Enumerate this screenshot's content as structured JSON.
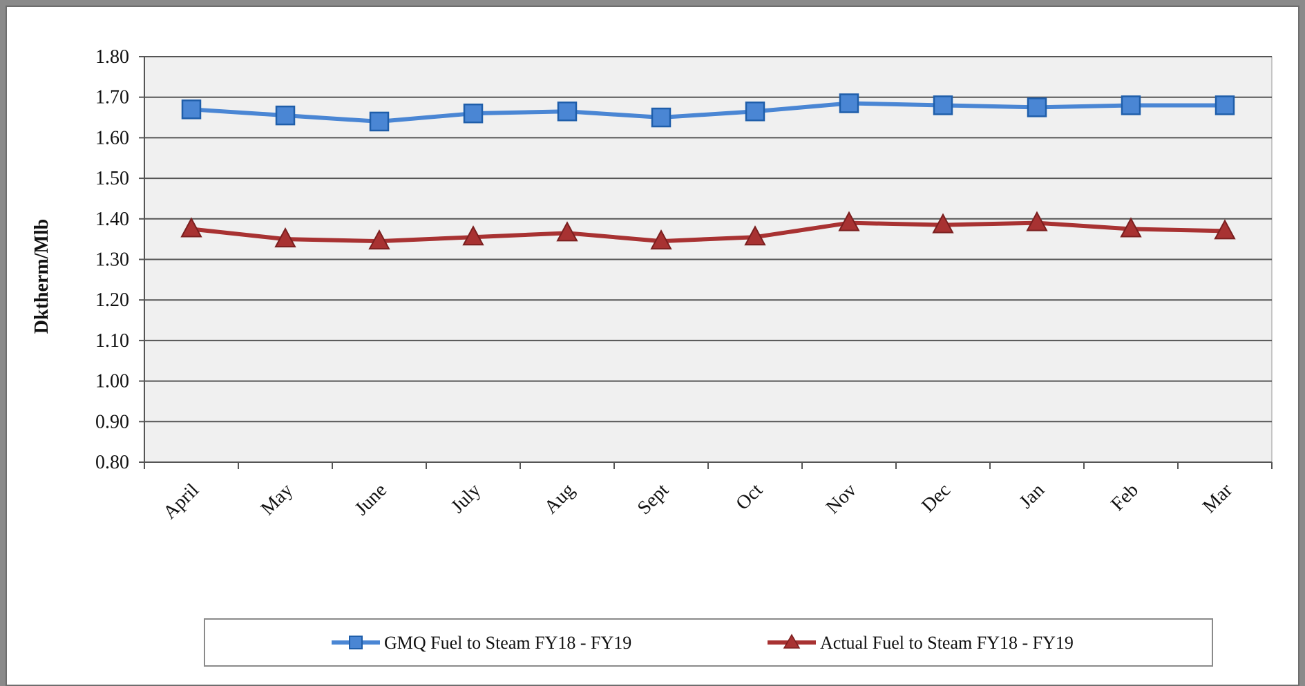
{
  "chart_data": {
    "type": "line",
    "title": "",
    "xlabel": "",
    "ylabel": "Dktherm/Mlb",
    "ylim": [
      0.8,
      1.8
    ],
    "ytick_step": 0.1,
    "yticks": [
      "0.80",
      "0.90",
      "1.00",
      "1.10",
      "1.20",
      "1.30",
      "1.40",
      "1.50",
      "1.60",
      "1.70",
      "1.80"
    ],
    "grid": true,
    "legend_position": "bottom",
    "categories": [
      "April",
      "May",
      "June",
      "July",
      "Aug",
      "Sept",
      "Oct",
      "Nov",
      "Dec",
      "Jan",
      "Feb",
      "Mar"
    ],
    "series": [
      {
        "name": "GMQ Fuel to Steam FY18 - FY19",
        "color": "#4a86d4",
        "marker": "square",
        "values": [
          1.67,
          1.655,
          1.64,
          1.66,
          1.665,
          1.65,
          1.665,
          1.685,
          1.68,
          1.675,
          1.68,
          1.68
        ]
      },
      {
        "name": "Actual Fuel to Steam FY18 - FY19",
        "color": "#a83232",
        "marker": "triangle",
        "values": [
          1.375,
          1.35,
          1.345,
          1.355,
          1.365,
          1.345,
          1.355,
          1.39,
          1.385,
          1.39,
          1.375,
          1.37
        ]
      }
    ]
  }
}
